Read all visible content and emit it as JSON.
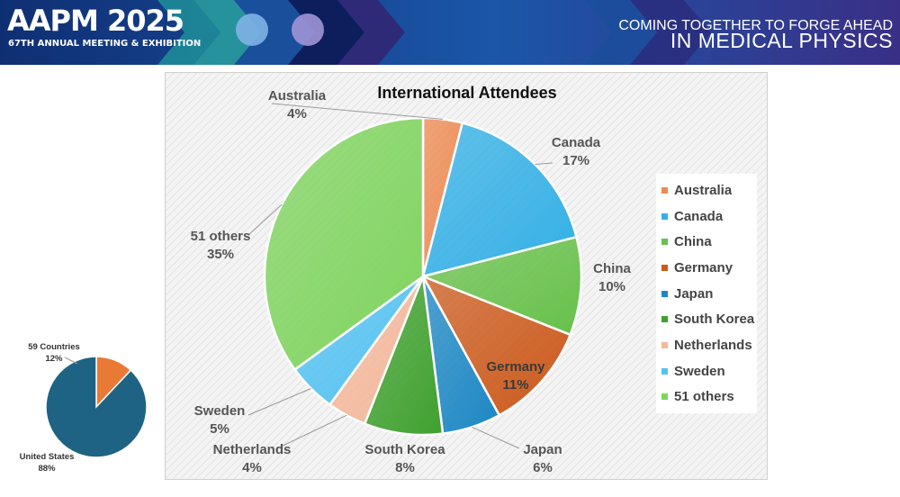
{
  "header": {
    "brand_title": "AAPM 2025",
    "brand_subtitle": "67TH ANNUAL MEETING & EXHIBITION",
    "tagline_line1": "COMING TOGETHER TO FORGE AHEAD",
    "tagline_line2": "IN MEDICAL PHYSICS",
    "colors": {
      "navy": "#0f2a6b",
      "blue": "#1b56a8",
      "teal": "#2aa6a0",
      "purple": "#4a2f86"
    }
  },
  "chart_data": [
    {
      "type": "pie",
      "title": "International Attendees",
      "legend_position": "right",
      "slices": [
        {
          "label": "Australia",
          "value": 4,
          "color": "#ee8a52",
          "pct_label": "4%"
        },
        {
          "label": "Canada",
          "value": 17,
          "color": "#33b0e6",
          "pct_label": "17%"
        },
        {
          "label": "China",
          "value": 10,
          "color": "#67c14a",
          "pct_label": "10%"
        },
        {
          "label": "Germany",
          "value": 11,
          "color": "#cc5a1c",
          "pct_label": "11%"
        },
        {
          "label": "Japan",
          "value": 6,
          "color": "#1c87c4",
          "pct_label": "6%"
        },
        {
          "label": "South Korea",
          "value": 8,
          "color": "#3fa12e",
          "pct_label": "8%"
        },
        {
          "label": "Netherlands",
          "value": 4,
          "color": "#f4b89b",
          "pct_label": "4%"
        },
        {
          "label": "Sweden",
          "value": 5,
          "color": "#53c2f2",
          "pct_label": "5%"
        },
        {
          "label": "51 others",
          "value": 35,
          "color": "#7fd45e",
          "pct_label": "35%"
        }
      ]
    },
    {
      "type": "pie",
      "slices": [
        {
          "label": "59 Countries",
          "value": 12,
          "color": "#e87a35",
          "pct_label": "12%"
        },
        {
          "label": "United States",
          "value": 88,
          "color": "#1e6384",
          "pct_label": "88%"
        }
      ]
    }
  ]
}
